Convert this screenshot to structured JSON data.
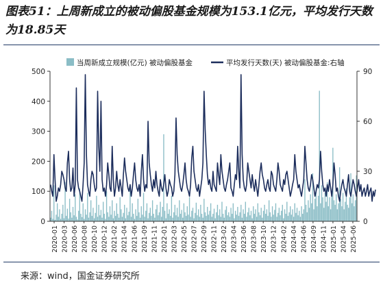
{
  "title": "图表51：上周新成立的被动偏股基金规模为153.1亿元，平均发行天数为18.85天",
  "source": "来源：wind，国金证券研究所",
  "colors": {
    "bar": "#8bbdc6",
    "line": "#1c2d5c",
    "axis": "#333333",
    "rule": "#1f3864"
  },
  "chart_data": {
    "type": "bar",
    "legend_position": "top",
    "grid": false,
    "x_tick_labels": [
      "2020-01",
      "2020-03",
      "2020-06",
      "2020-08",
      "2020-10",
      "2020-12",
      "2021-02",
      "2021-04",
      "2021-06",
      "2021-09",
      "2021-11",
      "2022-01",
      "2022-03",
      "2022-05",
      "2022-07",
      "2022-09",
      "2022-11",
      "2023-02",
      "2023-04",
      "2023-06",
      "2023-08",
      "2023-10",
      "2023-12",
      "2024-02",
      "2024-04",
      "2024-06",
      "2024-09",
      "2024-11",
      "2025-01",
      "2025-04",
      "2025-06"
    ],
    "left_axis": {
      "ticks": [
        "0",
        "100",
        "200",
        "300",
        "400",
        "500"
      ],
      "range": [
        0,
        500
      ]
    },
    "right_axis": {
      "ticks": [
        "0",
        "30",
        "60",
        "90"
      ],
      "range": [
        0,
        90
      ]
    },
    "series": [
      {
        "name": "当周新成立规模(亿元) 被动偏股基金",
        "type": "bar",
        "axis": "left",
        "x_start": "2020-01",
        "x_end": "2025-06",
        "count": 285,
        "values": [
          12,
          35,
          8,
          120,
          5,
          22,
          60,
          15,
          40,
          8,
          25,
          55,
          10,
          130,
          18,
          42,
          9,
          75,
          30,
          12,
          48,
          20,
          90,
          15,
          6,
          35,
          110,
          25,
          14,
          60,
          8,
          40,
          22,
          95,
          12,
          30,
          70,
          18,
          45,
          10,
          28,
          85,
          15,
          55,
          20,
          38,
          12,
          65,
          25,
          8,
          100,
          30,
          15,
          50,
          22,
          70,
          10,
          35,
          18,
          60,
          25,
          12,
          80,
          40,
          15,
          28,
          55,
          10,
          45,
          20,
          32,
          120,
          15,
          60,
          25,
          8,
          40,
          18,
          75,
          30,
          12,
          50,
          22,
          95,
          15,
          35,
          60,
          10,
          28,
          45,
          18,
          70,
          25,
          12,
          40,
          55,
          20,
          30,
          65,
          15,
          48,
          290,
          35,
          10,
          60,
          25,
          40,
          18,
          85,
          12,
          30,
          55,
          20,
          45,
          15,
          70,
          25,
          38,
          12,
          60,
          30,
          18,
          50,
          22,
          80,
          15,
          35,
          45,
          10,
          28,
          62,
          20,
          40,
          15,
          55,
          25,
          12,
          75,
          30,
          18,
          48,
          22,
          35,
          60,
          15,
          25,
          42,
          10,
          30,
          55,
          20,
          40,
          15,
          65,
          25,
          12,
          38,
          50,
          20,
          30,
          15,
          45,
          25,
          60,
          10,
          35,
          22,
          48,
          18,
          30,
          55,
          12,
          40,
          25,
          65,
          15,
          30,
          45,
          20,
          35,
          10,
          50,
          25,
          40,
          15,
          60,
          30,
          20,
          45,
          12,
          35,
          55,
          25,
          40,
          18,
          70,
          30,
          15,
          50,
          22,
          38,
          60,
          15,
          28,
          45,
          20,
          35,
          55,
          10,
          40,
          25,
          65,
          18,
          30,
          50,
          22,
          40,
          15,
          60,
          28,
          45,
          20,
          35,
          15,
          50,
          25,
          40,
          140,
          55,
          30,
          70,
          45,
          90,
          60,
          160,
          40,
          75,
          110,
          50,
          85,
          435,
          60,
          120,
          80,
          45,
          95,
          65,
          130,
          50,
          80,
          40,
          100,
          245,
          70,
          55,
          90,
          40,
          60,
          180,
          75,
          50,
          95,
          40,
          65,
          110,
          55,
          45,
          80,
          160,
          60,
          90,
          50,
          70,
          153
        ],
        "series_index": 0
      },
      {
        "name": "平均发行天数(天) 被动偏股基金:右轴",
        "type": "line",
        "axis": "right",
        "x_start": "2020-01",
        "x_end": "2025-06",
        "count": 285,
        "values": [
          22,
          18,
          15,
          40,
          25,
          12,
          15,
          20,
          18,
          22,
          30,
          28,
          25,
          20,
          18,
          35,
          42,
          25,
          18,
          20,
          32,
          15,
          22,
          80,
          25,
          20,
          18,
          15,
          12,
          22,
          35,
          88,
          40,
          22,
          18,
          15,
          25,
          30,
          28,
          22,
          18,
          20,
          78,
          45,
          30,
          72,
          25,
          18,
          20,
          15,
          22,
          35,
          28,
          20,
          18,
          45,
          25,
          15,
          20,
          30,
          22,
          18,
          25,
          20,
          15,
          28,
          38,
          30,
          25,
          20,
          18,
          22,
          15,
          20,
          28,
          35,
          25,
          20,
          18,
          22,
          15,
          30,
          40,
          25,
          18,
          22,
          20,
          60,
          35,
          28,
          22,
          18,
          25,
          20,
          30,
          22,
          18,
          15,
          25,
          20,
          18,
          22,
          28,
          20,
          15,
          18,
          25,
          22,
          20,
          15,
          18,
          28,
          62,
          40,
          30,
          25,
          20,
          18,
          22,
          28,
          35,
          25,
          20,
          18,
          15,
          22,
          38,
          45,
          30,
          25,
          20,
          18,
          22,
          15,
          20,
          25,
          35,
          78,
          55,
          40,
          28,
          22,
          25,
          20,
          18,
          30,
          22,
          20,
          18,
          35,
          28,
          22,
          40,
          30,
          25,
          20,
          18,
          22,
          25,
          30,
          35,
          20,
          18,
          15,
          22,
          28,
          25,
          45,
          30,
          20,
          88,
          40,
          25,
          20,
          18,
          22,
          35,
          30,
          25,
          20,
          28,
          22,
          18,
          25,
          20,
          15,
          22,
          30,
          35,
          28,
          25,
          20,
          18,
          22,
          25,
          20,
          18,
          30,
          28,
          22,
          20,
          18,
          25,
          35,
          30,
          22,
          20,
          18,
          25,
          22,
          28,
          30,
          25,
          20,
          15,
          18,
          22,
          25,
          40,
          30,
          25,
          20,
          22,
          18,
          15,
          20,
          25,
          45,
          35,
          25,
          20,
          18,
          22,
          28,
          25,
          20,
          15,
          18,
          22,
          20,
          25,
          42,
          30,
          22,
          18,
          20,
          15,
          22,
          18,
          25,
          20,
          15,
          22,
          35,
          28,
          18,
          20,
          15,
          12,
          18,
          22,
          25,
          20,
          18,
          15,
          22,
          28,
          18,
          15,
          20,
          25,
          22,
          18,
          15,
          20,
          25,
          18,
          22,
          15,
          18,
          20,
          15,
          18,
          22,
          15,
          18,
          20,
          12,
          18,
          15,
          19
        ],
        "series_index": 1
      }
    ]
  }
}
